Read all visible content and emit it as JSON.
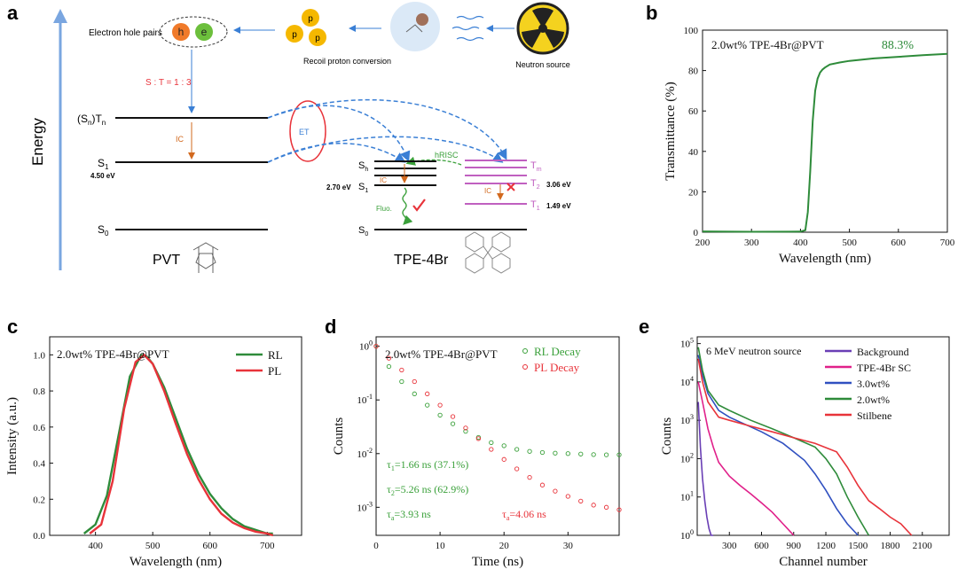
{
  "panel_labels": {
    "a": "a",
    "b": "b",
    "c": "c",
    "d": "d",
    "e": "e"
  },
  "schematic": {
    "energy_label": "Energy",
    "electron_hole_pairs": "Electron hole pairs",
    "hole": "h",
    "electron": "e",
    "proton": "p",
    "proton_charge": "+",
    "recoil": "Recoil proton conversion",
    "neutron_source": "Neutron source",
    "ratio": "S : T = 1 : 3",
    "ic": "IC",
    "et": "ET",
    "hrisc": "hRISC",
    "fluo": "Fluo.",
    "pvt": "PVT",
    "tpe": "TPE-4Br",
    "level_snTn": "(S",
    "level_snTn_sub1": "n",
    "level_snTn_mid": ")T",
    "level_snTn_sub2": "n",
    "level_S": "S",
    "sub_1": "1",
    "sub_0": "0",
    "sub_n": "n",
    "sub_m": "m",
    "sub_2": "2",
    "level_T": "T",
    "pvt_s1_energy": "4.50 eV",
    "tpe_s1_energy": "2.70 eV",
    "t2_energy": "3.06 eV",
    "t1_energy": "1.49 eV",
    "colors": {
      "accent_blue": "#3a7fd5",
      "red": "#e8333a",
      "orange": "#d2691e",
      "green": "#3aa03a",
      "magenta": "#c060c0"
    }
  },
  "chart_data": [
    {
      "panel": "b",
      "type": "line",
      "annotation": "2.0wt% TPE-4Br@PVT",
      "value_label": "88.3%",
      "xlabel": "Wavelength (nm)",
      "ylabel": "Transmittance (%)",
      "xlim": [
        200,
        700
      ],
      "ylim": [
        0,
        100
      ],
      "xticks": [
        200,
        300,
        400,
        500,
        600,
        700
      ],
      "yticks": [
        0,
        20,
        40,
        60,
        80,
        100
      ],
      "series": [
        {
          "color": "#2e8b3a",
          "x": [
            200,
            300,
            400,
            410,
            415,
            420,
            425,
            430,
            435,
            440,
            445,
            450,
            460,
            480,
            500,
            550,
            600,
            650,
            700
          ],
          "y": [
            0.4,
            0.2,
            0.3,
            1,
            10,
            30,
            55,
            70,
            76,
            79,
            80.5,
            81.5,
            83,
            84,
            84.8,
            86,
            86.8,
            87.6,
            88.3
          ]
        }
      ]
    },
    {
      "panel": "c",
      "type": "line",
      "annotation": "2.0wt% TPE-4Br@PVT",
      "xlabel": "Wavelength (nm)",
      "ylabel": "Intensity (a.u.)",
      "xlim": [
        320,
        760
      ],
      "ylim": [
        0,
        1.1
      ],
      "xticks": [
        400,
        500,
        600,
        700
      ],
      "yticks": [
        0.0,
        0.2,
        0.4,
        0.6,
        0.8,
        1.0
      ],
      "legend": "top-right",
      "series": [
        {
          "name": "RL",
          "color": "#2e8b3a",
          "x": [
            380,
            400,
            420,
            440,
            460,
            480,
            490,
            500,
            520,
            540,
            560,
            580,
            600,
            620,
            640,
            660,
            680,
            700,
            710
          ],
          "y": [
            0.01,
            0.06,
            0.22,
            0.55,
            0.88,
            1.0,
            0.99,
            0.95,
            0.82,
            0.65,
            0.48,
            0.34,
            0.23,
            0.15,
            0.09,
            0.05,
            0.03,
            0.01,
            0.01
          ]
        },
        {
          "name": "PL",
          "color": "#e8333a",
          "x": [
            390,
            410,
            430,
            450,
            470,
            485,
            500,
            520,
            540,
            560,
            580,
            600,
            620,
            640,
            660,
            680,
            700,
            710
          ],
          "y": [
            0.01,
            0.06,
            0.3,
            0.7,
            0.96,
            1.0,
            0.95,
            0.8,
            0.62,
            0.45,
            0.31,
            0.2,
            0.12,
            0.07,
            0.04,
            0.02,
            0.01,
            0.0
          ]
        }
      ]
    },
    {
      "panel": "d",
      "type": "scatter",
      "annotation": "2.0wt% TPE-4Br@PVT",
      "xlabel": "Time (ns)",
      "ylabel": "Counts",
      "yscale": "log",
      "xlim": [
        0,
        38
      ],
      "ylim": [
        0.0003,
        1.5
      ],
      "xticks": [
        0,
        10,
        20,
        30
      ],
      "yticks": [
        "10^0",
        "10^-1",
        "10^-2",
        "10^-3"
      ],
      "legend": "top-right",
      "fits": {
        "tau1": "1.66 ns (37.1%)",
        "tau2": "5.26 ns (62.9%)",
        "tau_a_rl": "3.93 ns",
        "tau_a_pl": "4.06 ns"
      },
      "series": [
        {
          "name": "RL Decay",
          "color": "#3aa03a",
          "x": [
            0,
            2,
            4,
            6,
            8,
            10,
            12,
            14,
            16,
            18,
            20,
            22,
            24,
            26,
            28,
            30,
            32,
            34,
            36,
            38
          ],
          "y": [
            1.0,
            0.42,
            0.22,
            0.13,
            0.08,
            0.052,
            0.036,
            0.026,
            0.02,
            0.016,
            0.014,
            0.012,
            0.011,
            0.0105,
            0.0102,
            0.01,
            0.0098,
            0.0096,
            0.0095,
            0.0095
          ]
        },
        {
          "name": "PL Decay",
          "color": "#e8333a",
          "x": [
            0,
            2,
            4,
            6,
            8,
            10,
            12,
            14,
            16,
            18,
            20,
            22,
            24,
            26,
            28,
            30,
            32,
            34,
            36,
            38
          ],
          "y": [
            1.0,
            0.6,
            0.36,
            0.22,
            0.13,
            0.08,
            0.049,
            0.03,
            0.019,
            0.012,
            0.0078,
            0.0052,
            0.0036,
            0.0026,
            0.002,
            0.0016,
            0.0013,
            0.0011,
            0.001,
            0.0009
          ]
        }
      ]
    },
    {
      "panel": "e",
      "type": "line",
      "annotation": "6 MeV neutron source",
      "xlabel": "Channel number",
      "ylabel": "Counts",
      "yscale": "log",
      "xlim": [
        0,
        2350
      ],
      "ylim": [
        1,
        150000
      ],
      "xticks": [
        300,
        600,
        900,
        1200,
        1500,
        1800,
        2100
      ],
      "yticks": [
        "10^5",
        "10^4",
        "10^3",
        "10^2",
        "10^1",
        "10^0"
      ],
      "legend": "top-right",
      "series": [
        {
          "name": "Background",
          "color": "#6a3fb5",
          "x": [
            10,
            30,
            50,
            70,
            90,
            110,
            130,
            150
          ],
          "y": [
            3000,
            200,
            30,
            8,
            3,
            1.5,
            1,
            1
          ]
        },
        {
          "name": "TPE-4Br SC",
          "color": "#e0208a",
          "x": [
            10,
            50,
            100,
            150,
            200,
            300,
            400,
            500,
            600,
            700,
            800,
            900
          ],
          "y": [
            10000,
            3000,
            600,
            200,
            80,
            35,
            20,
            12,
            7,
            4,
            2,
            1
          ]
        },
        {
          "name": "3.0wt%",
          "color": "#3050c0",
          "x": [
            10,
            50,
            100,
            200,
            300,
            400,
            600,
            800,
            1000,
            1100,
            1200,
            1300,
            1400,
            1500
          ],
          "y": [
            50000,
            15000,
            5000,
            1800,
            1200,
            900,
            500,
            250,
            90,
            40,
            15,
            5,
            2,
            1
          ]
        },
        {
          "name": "2.0wt%",
          "color": "#2e8b3a",
          "x": [
            10,
            50,
            100,
            200,
            300,
            500,
            700,
            900,
            1100,
            1200,
            1300,
            1400,
            1500,
            1600
          ],
          "y": [
            80000,
            20000,
            6000,
            2500,
            1800,
            1000,
            600,
            350,
            200,
            100,
            40,
            10,
            3,
            1
          ]
        },
        {
          "name": "Stilbene",
          "color": "#e8333a",
          "x": [
            10,
            50,
            100,
            200,
            300,
            500,
            700,
            900,
            1100,
            1300,
            1400,
            1500,
            1600,
            1700,
            1800,
            1900,
            2000
          ],
          "y": [
            40000,
            10000,
            3000,
            1200,
            1000,
            700,
            500,
            350,
            250,
            150,
            60,
            20,
            8,
            5,
            3,
            2,
            1
          ]
        }
      ]
    }
  ]
}
